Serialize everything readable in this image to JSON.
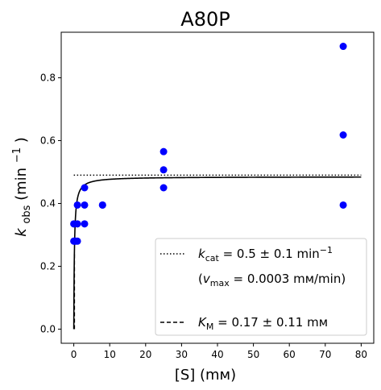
{
  "chart_data": {
    "type": "scatter",
    "title": "A80P",
    "xlabel": "[S] (mм)",
    "ylabel": "k_obs (min⁻¹)",
    "ylabel_parts": {
      "main": "k",
      "sub": "obs",
      "paren_open": " (min",
      "sup": "−1",
      "paren_close": ")"
    },
    "xlim": [
      -3.5,
      83.5
    ],
    "ylim": [
      -0.045,
      0.945
    ],
    "xticks": [
      0,
      10,
      20,
      30,
      40,
      50,
      60,
      70,
      80
    ],
    "yticks": [
      0.0,
      0.2,
      0.4,
      0.6,
      0.8
    ],
    "ytick_labels": [
      "0.0",
      "0.2",
      "0.4",
      "0.6",
      "0.8"
    ],
    "grid": false,
    "legend_position": "lower-right",
    "marker_color": "#0000ff",
    "series": [
      {
        "kind": "points",
        "x": [
          0.0,
          0.0,
          0.2,
          0.5,
          1.0,
          1.0,
          1.0,
          3.0,
          3.0,
          3.0,
          8.0,
          8.0,
          25.0,
          25.0,
          25.0,
          75.0,
          75.0,
          75.0
        ],
        "y": [
          0.28,
          0.335,
          0.28,
          0.28,
          0.395,
          0.335,
          0.28,
          0.45,
          0.395,
          0.335,
          0.395,
          0.395,
          0.565,
          0.507,
          0.45,
          0.9,
          0.618,
          0.395
        ]
      },
      {
        "kind": "fit-curve",
        "model": "michaelis-menten",
        "vmax": 0.485,
        "km": 0.17,
        "x_range": [
          0,
          80
        ]
      },
      {
        "kind": "hline-dotted",
        "y": 0.49,
        "x_range": [
          0,
          80
        ]
      },
      {
        "kind": "vline-dashed",
        "x": 0.17,
        "y_range": [
          0,
          0.245
        ]
      }
    ],
    "legend": [
      {
        "style": "dotted",
        "parts": [
          {
            "t": "k",
            "i": true
          },
          {
            "t": "cat",
            "sub": true
          },
          {
            "t": " = 0.5 ± 0.1 min"
          },
          {
            "t": "−1",
            "sup": true
          }
        ]
      },
      {
        "style": "none",
        "parts": [
          {
            "t": "("
          },
          {
            "t": "v",
            "i": true
          },
          {
            "t": "max",
            "sub": true
          },
          {
            "t": " = 0.0003 mм/min)"
          }
        ]
      },
      {
        "style": "none",
        "parts": []
      },
      {
        "style": "dashed",
        "parts": [
          {
            "t": "K",
            "i": true
          },
          {
            "t": "M",
            "sub": true
          },
          {
            "t": " = 0.17 ± 0.11 mм"
          }
        ]
      }
    ]
  }
}
